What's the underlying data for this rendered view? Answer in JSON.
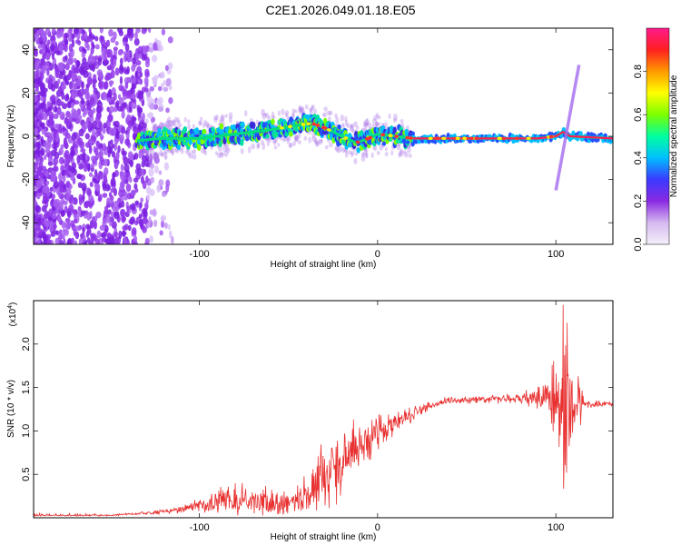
{
  "title": "C2E1.2026.049.01.18.E05",
  "chart_data": [
    {
      "type": "heatmap",
      "name": "spectrogram",
      "xlabel": "Height of straight line (km)",
      "ylabel": "Frequency (Hz)",
      "xlim": [
        -193,
        132
      ],
      "ylim": [
        -50,
        50
      ],
      "x_ticks": [
        -100,
        0,
        100
      ],
      "x_tick_labels": [
        "-100",
        "0",
        "100"
      ],
      "y_ticks": [
        -40,
        -20,
        0,
        20,
        40
      ],
      "y_tick_labels": [
        "-40",
        "-20",
        "0",
        "20",
        "40"
      ],
      "ridge": {
        "x": [
          -135,
          -120,
          -100,
          -80,
          -60,
          -45,
          -37,
          -30,
          -20,
          -12,
          -5,
          0,
          10,
          20,
          40,
          70,
          90,
          100,
          104,
          108,
          132
        ],
        "y": [
          -2,
          -1,
          -1,
          1,
          3,
          5,
          6,
          4,
          0,
          -3,
          -1,
          1,
          0,
          -1,
          -1,
          -1,
          -1,
          0,
          2,
          0,
          -1
        ]
      },
      "spike": {
        "x1": 100,
        "y1": -25,
        "x2": 113,
        "y2": 33
      },
      "colorbar": {
        "label": "Normalized spectral amplitude",
        "range": [
          0.0,
          1.0
        ],
        "ticks": [
          0.0,
          0.2,
          0.4,
          0.6,
          0.8
        ],
        "tick_labels": [
          "0.0",
          "0.2",
          "0.4",
          "0.6",
          "0.8"
        ],
        "colors": [
          "#f4f0fa",
          "#d6b9f0",
          "#8a2be2",
          "#3a3aff",
          "#00bfff",
          "#00ffa0",
          "#7cff00",
          "#ffff00",
          "#ff9900",
          "#ff2020",
          "#ff1a8c"
        ]
      }
    },
    {
      "type": "line",
      "name": "snr",
      "xlabel": "Height of straight line (km)",
      "ylabel": "SNR (10 * v/v)",
      "scale_label": "(x10",
      "scale_exp": "4",
      "scale_close": ")",
      "color": "#e83030",
      "xlim": [
        -193,
        132
      ],
      "ylim": [
        0,
        2.5
      ],
      "x_ticks": [
        -100,
        0,
        100
      ],
      "x_tick_labels": [
        "-100",
        "0",
        "100"
      ],
      "y_ticks": [
        0.5,
        1.0,
        1.5,
        2.0
      ],
      "y_tick_labels": [
        "0.5",
        "1.0",
        "1.5",
        "2.0"
      ],
      "envelope": {
        "x": [
          -193,
          -150,
          -125,
          -110,
          -100,
          -90,
          -80,
          -70,
          -60,
          -50,
          -40,
          -35,
          -30,
          -25,
          -20,
          -10,
          0,
          10,
          20,
          30,
          40,
          60,
          80,
          90,
          95,
          100,
          103,
          106,
          108,
          110,
          113,
          116,
          132
        ],
        "y": [
          0.02,
          0.03,
          0.06,
          0.1,
          0.15,
          0.2,
          0.22,
          0.2,
          0.16,
          0.15,
          0.25,
          0.35,
          0.45,
          0.55,
          0.65,
          0.82,
          0.98,
          1.1,
          1.2,
          1.3,
          1.35,
          1.36,
          1.38,
          1.4,
          1.38,
          1.38,
          1.35,
          1.3,
          1.3,
          1.3,
          1.32,
          1.31,
          1.31
        ],
        "amp": [
          0.01,
          0.01,
          0.02,
          0.04,
          0.08,
          0.15,
          0.2,
          0.18,
          0.15,
          0.12,
          0.22,
          0.3,
          0.35,
          0.35,
          0.35,
          0.28,
          0.22,
          0.12,
          0.08,
          0.05,
          0.04,
          0.04,
          0.06,
          0.12,
          0.25,
          0.55,
          0.9,
          1.1,
          0.9,
          0.6,
          0.3,
          0.04,
          0.03
        ]
      }
    }
  ]
}
